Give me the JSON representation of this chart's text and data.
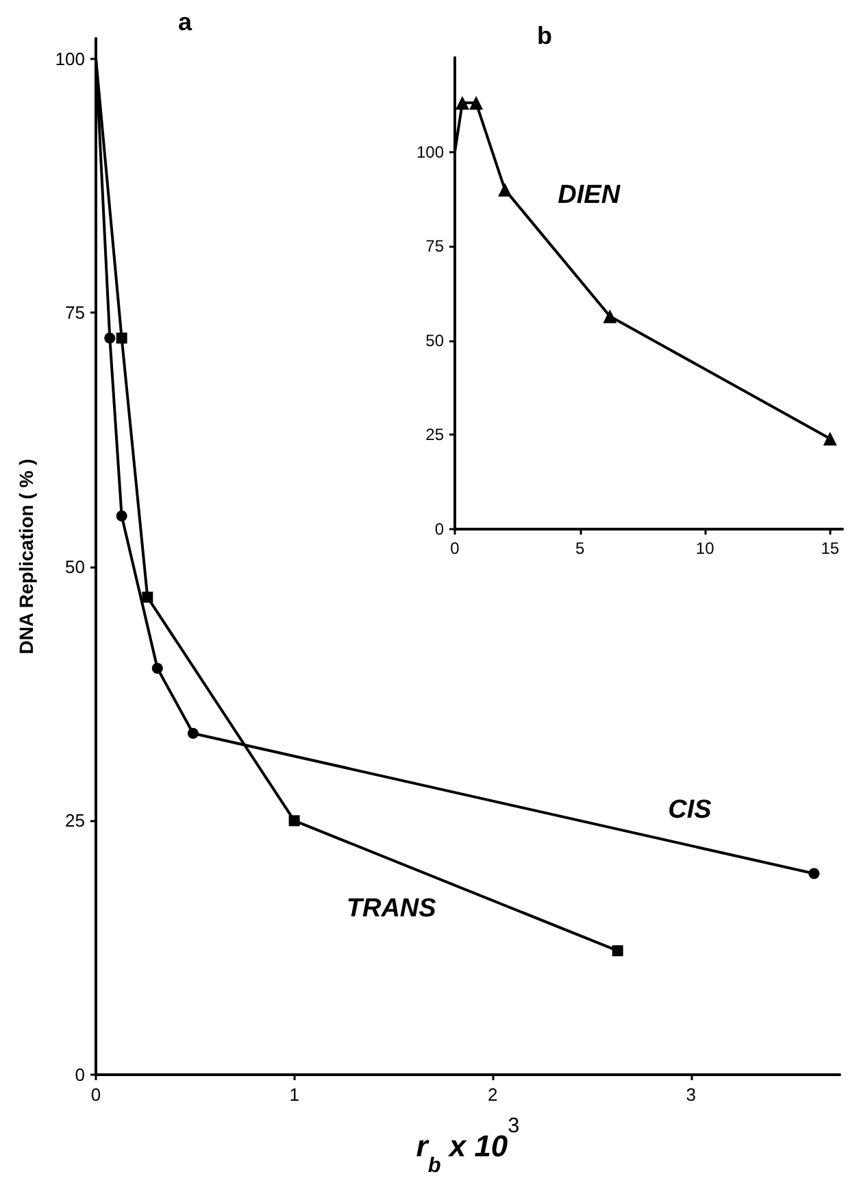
{
  "chart_data": [
    {
      "type": "line",
      "title": "a",
      "xlabel": "r$_{b}$ x 10$^{3}$",
      "ylabel": "DNA Replication ( % )",
      "xlim": [
        0,
        3.75
      ],
      "xticks": [
        0,
        1,
        2,
        3
      ],
      "ylim": [
        0,
        102
      ],
      "yticks": [
        0,
        25,
        50,
        75,
        100
      ],
      "grid": false,
      "legend": false,
      "series": [
        {
          "name": "CIS",
          "color": "#000000",
          "marker": "circle",
          "x": [
            0,
            0.07,
            0.13,
            0.31,
            0.49,
            3.62
          ],
          "values": [
            100,
            72.5,
            55,
            40,
            33.6,
            19.8
          ]
        },
        {
          "name": "TRANS",
          "color": "#000000",
          "marker": "square",
          "x": [
            0,
            0.13,
            0.26,
            1.0,
            2.63
          ],
          "values": [
            100,
            72.5,
            47,
            25,
            12.2
          ]
        }
      ]
    },
    {
      "type": "line",
      "title": "b",
      "xlim": [
        0,
        15.5
      ],
      "xticks": [
        0,
        5,
        10,
        15
      ],
      "ylim": [
        0,
        125
      ],
      "yticks": [
        0,
        25,
        50,
        75,
        100
      ],
      "grid": false,
      "legend": false,
      "series": [
        {
          "name": "DIEN",
          "color": "#000000",
          "marker": "triangle",
          "x": [
            0,
            0.3,
            0.85,
            2.0,
            6.2,
            15
          ],
          "values": [
            100,
            113,
            113,
            90,
            56.4,
            24
          ]
        }
      ]
    }
  ]
}
